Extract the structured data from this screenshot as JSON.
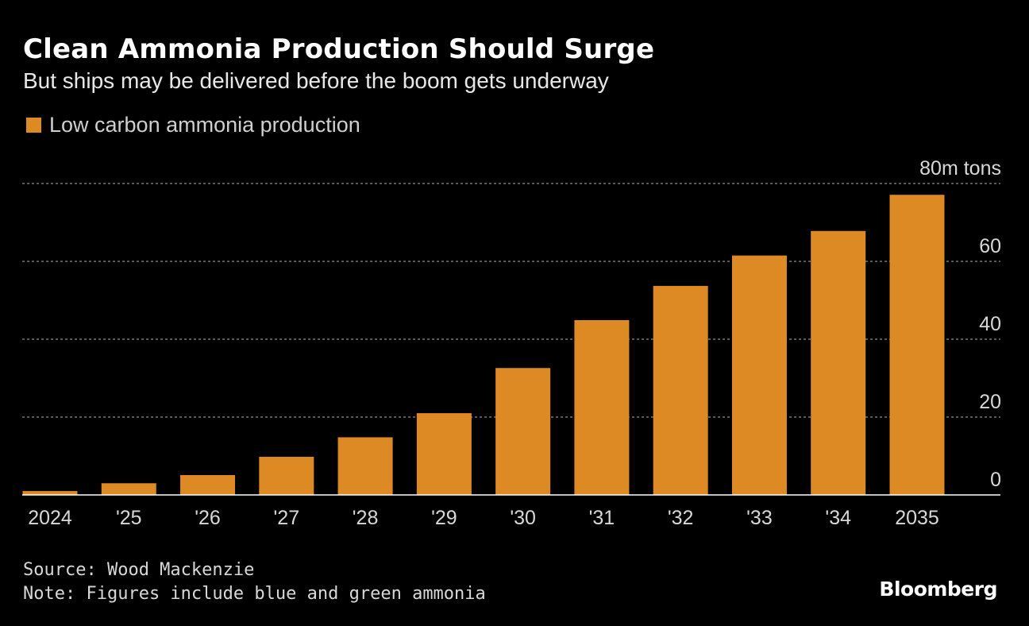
{
  "header": {
    "title": "Clean Ammonia Production Should Surge",
    "subtitle": "But ships may be delivered before the boom gets underway"
  },
  "colors": {
    "bar": "#dd8a24",
    "grid": "#8c8c8c",
    "background": "#000000"
  },
  "chart_data": {
    "type": "bar",
    "title": "Clean Ammonia Production Should Surge",
    "subtitle": "But ships may be delivered before the boom gets underway",
    "xlabel": "",
    "ylabel": "",
    "unit_label": "80m tons",
    "categories": [
      "2024",
      "'25",
      "'26",
      "'27",
      "'28",
      "'29",
      "'30",
      "'31",
      "'32",
      "'33",
      "'34",
      "2035"
    ],
    "series": [
      {
        "name": "Low carbon ammonia production",
        "values": [
          1.0,
          3.0,
          5.1,
          9.8,
          14.8,
          21.0,
          32.6,
          44.9,
          53.7,
          61.5,
          67.8,
          77.1
        ]
      }
    ],
    "ylim": [
      0,
      80
    ],
    "yticks": [
      0,
      20,
      40,
      60,
      80
    ],
    "ytick_labels": [
      "0",
      "20",
      "40",
      "60",
      "80m tons"
    ],
    "grid": true,
    "legend_position": "top-left"
  },
  "footer": {
    "source": "Source: Wood Mackenzie",
    "note": "Note: Figures include blue and green ammonia",
    "brand": "Bloomberg"
  }
}
